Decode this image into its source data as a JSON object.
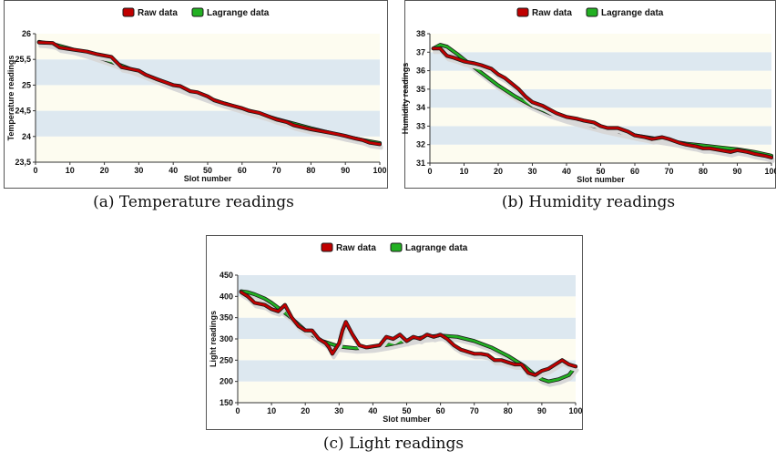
{
  "chart_data": [
    {
      "id": "temperature",
      "type": "line",
      "caption": "(a)  Temperature readings",
      "xlabel": "Slot number",
      "ylabel": "Temperature readings",
      "xlim": [
        0,
        100
      ],
      "ylim": [
        23.5,
        26
      ],
      "xticks": [
        "0",
        "10",
        "20",
        "30",
        "40",
        "50",
        "60",
        "70",
        "80",
        "90",
        "100"
      ],
      "yticks": [
        "23,5",
        "24",
        "24,5",
        "25",
        "25,5",
        "26"
      ],
      "band_colors": [
        "#fdfcf0",
        "#dde8f0"
      ],
      "legend": {
        "position": "top-center"
      },
      "series": [
        {
          "name": "Raw data",
          "color": "#c00000",
          "x": [
            1,
            5,
            7,
            10,
            15,
            18,
            22,
            25,
            30,
            32,
            35,
            38,
            40,
            42,
            45,
            47,
            50,
            52,
            55,
            60,
            62,
            65,
            70,
            73,
            75,
            80,
            85,
            88,
            90,
            93,
            95,
            97,
            100
          ],
          "y": [
            25.83,
            25.82,
            25.73,
            25.7,
            25.65,
            25.6,
            25.55,
            25.35,
            25.28,
            25.2,
            25.12,
            25.05,
            25.0,
            24.98,
            24.88,
            24.86,
            24.78,
            24.7,
            24.64,
            24.55,
            24.5,
            24.46,
            24.33,
            24.28,
            24.22,
            24.14,
            24.08,
            24.04,
            24.01,
            23.96,
            23.93,
            23.88,
            23.85
          ]
        },
        {
          "name": "Lagrange data",
          "color": "#22b022",
          "x": [
            1,
            5,
            10,
            15,
            20,
            25,
            30,
            35,
            40,
            45,
            50,
            55,
            60,
            65,
            70,
            75,
            80,
            85,
            90,
            95,
            100
          ],
          "y": [
            25.84,
            25.8,
            25.71,
            25.61,
            25.5,
            25.38,
            25.25,
            25.12,
            24.99,
            24.87,
            24.75,
            24.64,
            24.54,
            24.44,
            24.34,
            24.25,
            24.16,
            24.08,
            24.0,
            23.93,
            23.87
          ]
        }
      ]
    },
    {
      "id": "humidity",
      "type": "line",
      "caption": "(b)  Humidity readings",
      "xlabel": "Slot number",
      "ylabel": "Humidity readings",
      "xlim": [
        0,
        100
      ],
      "ylim": [
        31,
        38
      ],
      "xticks": [
        "0",
        "10",
        "20",
        "30",
        "40",
        "50",
        "60",
        "70",
        "80",
        "90",
        "100"
      ],
      "yticks": [
        "31",
        "32",
        "33",
        "34",
        "35",
        "36",
        "37",
        "38"
      ],
      "band_colors": [
        "#fdfcf0",
        "#dde8f0"
      ],
      "legend": {
        "position": "top-center"
      },
      "series": [
        {
          "name": "Raw data",
          "color": "#c00000",
          "x": [
            1,
            3,
            4,
            5,
            7,
            10,
            13,
            15,
            18,
            20,
            22,
            24,
            26,
            28,
            30,
            33,
            35,
            37,
            40,
            43,
            45,
            48,
            50,
            52,
            55,
            58,
            60,
            63,
            65,
            68,
            70,
            73,
            75,
            78,
            80,
            82,
            85,
            88,
            90,
            93,
            95,
            98,
            100
          ],
          "y": [
            37.2,
            37.2,
            37.0,
            36.8,
            36.7,
            36.5,
            36.4,
            36.3,
            36.1,
            35.8,
            35.6,
            35.3,
            35.0,
            34.6,
            34.3,
            34.1,
            33.9,
            33.7,
            33.5,
            33.4,
            33.3,
            33.2,
            33.0,
            32.9,
            32.9,
            32.7,
            32.5,
            32.4,
            32.3,
            32.4,
            32.3,
            32.1,
            32.0,
            31.9,
            31.8,
            31.8,
            31.7,
            31.6,
            31.7,
            31.6,
            31.5,
            31.4,
            31.3
          ]
        },
        {
          "name": "Lagrange data",
          "color": "#22b022",
          "x": [
            1,
            3,
            5,
            8,
            10,
            15,
            20,
            25,
            30,
            35,
            40,
            45,
            50,
            55,
            60,
            65,
            70,
            75,
            80,
            85,
            90,
            95,
            100
          ],
          "y": [
            37.2,
            37.4,
            37.3,
            36.9,
            36.6,
            35.9,
            35.2,
            34.6,
            34.1,
            33.7,
            33.4,
            33.15,
            32.9,
            32.7,
            32.5,
            32.35,
            32.2,
            32.05,
            31.95,
            31.85,
            31.75,
            31.6,
            31.4
          ]
        }
      ]
    },
    {
      "id": "light",
      "type": "line",
      "caption": "(c)  Light readings",
      "xlabel": "Slot number",
      "ylabel": "Light readings",
      "xlim": [
        0,
        100
      ],
      "ylim": [
        150,
        450
      ],
      "xticks": [
        "0",
        "10",
        "20",
        "30",
        "40",
        "50",
        "60",
        "70",
        "80",
        "90",
        "100"
      ],
      "yticks": [
        "150",
        "200",
        "250",
        "300",
        "350",
        "400",
        "450"
      ],
      "band_colors": [
        "#fdfcf0",
        "#dde8f0"
      ],
      "legend": {
        "position": "top-center"
      },
      "series": [
        {
          "name": "Raw data",
          "color": "#c00000",
          "x": [
            1,
            3,
            5,
            8,
            10,
            12,
            14,
            16,
            18,
            20,
            22,
            24,
            26,
            27,
            28,
            30,
            31,
            32,
            34,
            36,
            38,
            42,
            44,
            46,
            48,
            50,
            52,
            54,
            56,
            58,
            60,
            62,
            64,
            66,
            68,
            70,
            72,
            74,
            76,
            78,
            80,
            82,
            84,
            86,
            88,
            90,
            92,
            94,
            96,
            98,
            100
          ],
          "y": [
            410,
            400,
            385,
            380,
            370,
            365,
            380,
            350,
            330,
            320,
            320,
            300,
            290,
            280,
            265,
            290,
            320,
            340,
            310,
            285,
            280,
            285,
            305,
            300,
            310,
            295,
            305,
            300,
            310,
            305,
            310,
            300,
            285,
            275,
            270,
            265,
            265,
            262,
            250,
            250,
            245,
            240,
            240,
            220,
            215,
            225,
            230,
            240,
            250,
            240,
            235
          ]
        },
        {
          "name": "Lagrange data",
          "color": "#22b022",
          "x": [
            1,
            3,
            5,
            8,
            10,
            15,
            20,
            25,
            30,
            35,
            40,
            45,
            50,
            55,
            60,
            65,
            70,
            75,
            80,
            85,
            88,
            90,
            92,
            95,
            98,
            100
          ],
          "y": [
            412,
            410,
            405,
            395,
            385,
            355,
            320,
            295,
            282,
            278,
            280,
            287,
            296,
            304,
            308,
            305,
            295,
            280,
            260,
            235,
            215,
            205,
            200,
            205,
            215,
            235
          ]
        }
      ]
    }
  ]
}
